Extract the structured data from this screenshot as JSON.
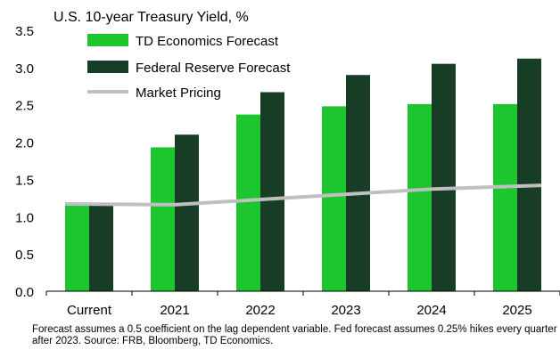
{
  "chart_data": {
    "type": "bar",
    "title": "U.S. 10-year Treasury Yield, %",
    "categories": [
      "Current",
      "2021",
      "2022",
      "2023",
      "2024",
      "2025"
    ],
    "series": [
      {
        "name": "TD Economics Forecast",
        "kind": "bar",
        "color": "#1dc62e",
        "values": [
          1.17,
          1.93,
          2.37,
          2.48,
          2.51,
          2.51
        ]
      },
      {
        "name": "Federal Reserve Forecast",
        "kind": "bar",
        "color": "#173d27",
        "values": [
          1.17,
          2.1,
          2.67,
          2.9,
          3.05,
          3.12
        ]
      },
      {
        "name": "Market Pricing",
        "kind": "line",
        "color": "#bfbfbf",
        "values": [
          1.17,
          1.16,
          1.23,
          1.3,
          1.37,
          1.42
        ]
      }
    ],
    "ylim": [
      0,
      3.5
    ],
    "yticks": [
      "0.0",
      "0.5",
      "1.0",
      "1.5",
      "2.0",
      "2.5",
      "3.0",
      "3.5"
    ],
    "grid": false,
    "legend": "top-left",
    "xlabel": "",
    "ylabel": ""
  },
  "footnote": "Forecast assumes a 0.5 coefficient on the lag dependent variable. Fed forecast assumes 0.25% hikes every quarter after 2023. Source: FRB, Bloomberg, TD Economics."
}
